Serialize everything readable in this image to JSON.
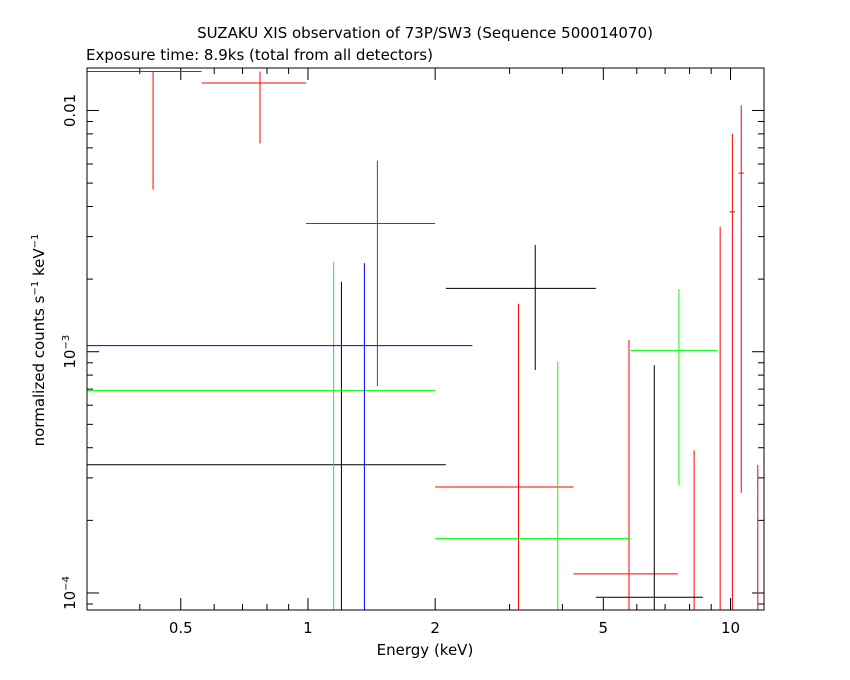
{
  "chart_data": {
    "type": "scatter",
    "title": "SUZAKU XIS observation of 73P/SW3 (Sequence 500014070)",
    "subtitle": "Exposure time: 8.9ks (total from all detectors)",
    "xlabel": "Energy (keV)",
    "ylabel_main": "normalized counts s",
    "ylabel_sup1": "−1",
    "ylabel_mid": " keV",
    "ylabel_sup2": "−1",
    "x_scale": "log",
    "y_scale": "log",
    "xlim": [
      0.3,
      12
    ],
    "ylim": [
      8.5e-05,
      0.015
    ],
    "x_ticks": [
      {
        "value": 0.5,
        "label": "0.5"
      },
      {
        "value": 1,
        "label": "1"
      },
      {
        "value": 2,
        "label": "2"
      },
      {
        "value": 5,
        "label": "5"
      },
      {
        "value": 10,
        "label": "10"
      }
    ],
    "y_ticks": [
      {
        "value": 0.0001,
        "label": "10",
        "sup": "−4"
      },
      {
        "value": 0.001,
        "label": "10",
        "sup": "−3"
      },
      {
        "value": 0.01,
        "label": "0.01",
        "sup": ""
      }
    ],
    "series": [
      {
        "color": "#ff0000",
        "points": [
          {
            "x": 0.43,
            "xlo": 0.3,
            "xhi": 0.56,
            "y": 0.0145,
            "ylo": 0.0047,
            "yhi": 0.0145
          },
          {
            "x": 0.77,
            "xlo": 0.56,
            "xhi": 0.99,
            "y": 0.013,
            "ylo": 0.0073,
            "yhi": 0.0145
          },
          {
            "x": 1.46,
            "xlo": 0.99,
            "xhi": 2.0,
            "y": 0.0034,
            "ylo": 0.00072,
            "yhi": 0.0062
          },
          {
            "x": 3.15,
            "xlo": 2.0,
            "xhi": 4.25,
            "y": 0.000275,
            "ylo": 8.5e-05,
            "yhi": 0.00158
          },
          {
            "x": 5.75,
            "xlo": 4.25,
            "xhi": 7.5,
            "y": 0.00012,
            "ylo": 8.5e-05,
            "yhi": 0.00112
          },
          {
            "x": 8.2,
            "xlo": 8.2,
            "xhi": 8.2,
            "y": 8.5e-05,
            "ylo": 8.5e-05,
            "yhi": 0.00039
          },
          {
            "x": 9.45,
            "xlo": 9.45,
            "xhi": 9.45,
            "y": 8.5e-05,
            "ylo": 8.5e-05,
            "yhi": 0.0033
          },
          {
            "x": 10.1,
            "xlo": 9.95,
            "xhi": 10.25,
            "y": 0.0038,
            "ylo": 8.5e-05,
            "yhi": 0.008
          },
          {
            "x": 10.6,
            "xlo": 10.45,
            "xhi": 10.75,
            "y": 0.0055,
            "ylo": 0.00026,
            "yhi": 0.0105
          },
          {
            "x": 11.6,
            "xlo": 11.6,
            "xhi": 11.6,
            "y": 8.5e-05,
            "ylo": 8.5e-05,
            "yhi": 0.00034
          }
        ]
      },
      {
        "color": "#000000",
        "points": [
          {
            "x": 1.2,
            "xlo": 0.3,
            "xhi": 2.12,
            "y": 0.00034,
            "ylo": 8.5e-05,
            "yhi": 0.00195
          },
          {
            "x": 3.45,
            "xlo": 2.12,
            "xhi": 4.8,
            "y": 0.00183,
            "ylo": 0.00084,
            "yhi": 0.00277
          },
          {
            "x": 6.6,
            "xlo": 4.8,
            "xhi": 8.6,
            "y": 9.6e-05,
            "ylo": 8.5e-05,
            "yhi": 0.00088
          }
        ]
      },
      {
        "color": "#00ff00",
        "points": [
          {
            "x": 1.15,
            "xlo": 0.3,
            "xhi": 2.0,
            "y": 0.00069,
            "ylo": 8.5e-05,
            "yhi": 0.00235
          },
          {
            "x": 3.9,
            "xlo": 2.0,
            "xhi": 5.8,
            "y": 0.000168,
            "ylo": 8.5e-05,
            "yhi": 0.00091
          },
          {
            "x": 7.55,
            "xlo": 5.8,
            "xhi": 9.3,
            "y": 0.00101,
            "ylo": 0.00028,
            "yhi": 0.00182
          }
        ]
      },
      {
        "color": "#0000ff",
        "points": [
          {
            "x": 1.36,
            "xlo": 0.3,
            "xhi": 2.45,
            "y": 0.00106,
            "ylo": 8.5e-05,
            "yhi": 0.00233
          }
        ]
      }
    ]
  }
}
